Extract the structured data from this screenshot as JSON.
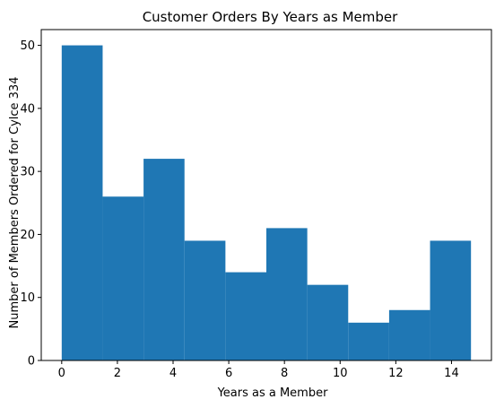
{
  "chart_data": {
    "type": "bar",
    "title": "Customer Orders By Years as Member",
    "xlabel": "Years as a Member",
    "ylabel": "Number of Members Ordered for Cylce 334",
    "bin_edges": [
      0,
      1.47,
      2.94,
      4.41,
      5.88,
      7.35,
      8.82,
      10.29,
      11.76,
      13.23,
      14.7
    ],
    "values": [
      50,
      26,
      32,
      19,
      14,
      21,
      12,
      6,
      8,
      19
    ],
    "xlim": [
      -0.735,
      15.435
    ],
    "ylim": [
      0,
      52.5
    ],
    "xticks": [
      0,
      2,
      4,
      6,
      8,
      10,
      12,
      14
    ],
    "yticks": [
      0,
      10,
      20,
      30,
      40,
      50
    ],
    "bar_color": "#1f77b4",
    "grid": false,
    "legend": false
  }
}
